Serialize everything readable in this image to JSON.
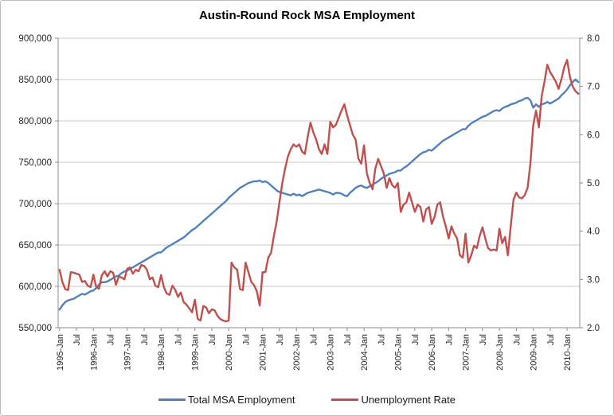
{
  "title": "Austin-Round Rock MSA Employment",
  "legend": {
    "entries": [
      {
        "label": "Total MSA Employment",
        "color": "#4F81BD"
      },
      {
        "label": "Unemployment Rate",
        "color": "#C0504D"
      }
    ]
  },
  "chart_data": {
    "type": "line",
    "title": "Austin-Round Rock MSA Employment",
    "xlabel": "",
    "ylabel_left": "",
    "ylabel_right": "",
    "grid": "horizontal-only",
    "legend_position": "bottom",
    "x_start": "1995-Jan",
    "x_end": "2010-May",
    "x_frequency": "monthly",
    "x_tick_labels": [
      "1995-Jan",
      "Jul",
      "1996-Jan",
      "Jul",
      "1997-Jan",
      "Jul",
      "1998-Jan",
      "Jul",
      "1999-Jan",
      "Jul",
      "2000-Jan",
      "Jul",
      "2001-Jan",
      "Jul",
      "2002-Jan",
      "Jul",
      "2003-Jan",
      "Jul",
      "2004-Jan",
      "Jul",
      "2005-Jan",
      "Jul",
      "2006-Jan",
      "Jul",
      "2007-Jan",
      "Jul",
      "2008-Jan",
      "Jul",
      "2009-Jan",
      "Jul",
      "2010-Jan"
    ],
    "x_tick_every_n_months": 6,
    "left_axis": {
      "min": 550000,
      "max": 900000,
      "step": 50000,
      "tick_labels": [
        "550,000",
        "600,000",
        "650,000",
        "700,000",
        "750,000",
        "800,000",
        "850,000",
        "900,000"
      ]
    },
    "right_axis": {
      "min": 2.0,
      "max": 8.0,
      "step": 1.0,
      "tick_labels": [
        "2.0",
        "3.0",
        "4.0",
        "5.0",
        "6.0",
        "7.0",
        "8.0"
      ]
    },
    "series": [
      {
        "name": "Total MSA Employment",
        "axis": "left",
        "color": "#4F81BD",
        "values": [
          572000,
          577000,
          581000,
          583000,
          584000,
          585000,
          587000,
          589000,
          591000,
          590000,
          592000,
          594000,
          595000,
          598000,
          602000,
          605000,
          605000,
          606000,
          608000,
          610000,
          612000,
          613000,
          616000,
          618000,
          619000,
          621000,
          623000,
          625000,
          627000,
          629000,
          631000,
          633000,
          635000,
          637000,
          639000,
          641000,
          641000,
          644000,
          647000,
          649000,
          651000,
          653000,
          655000,
          657000,
          659000,
          662000,
          665000,
          668000,
          670000,
          673000,
          676000,
          679000,
          682000,
          685000,
          688000,
          691000,
          694000,
          697000,
          700000,
          703000,
          707000,
          710000,
          713000,
          716000,
          719000,
          721000,
          723000,
          725000,
          726000,
          727000,
          727000,
          728000,
          726000,
          727000,
          725000,
          722000,
          719000,
          716000,
          714000,
          713000,
          712000,
          711000,
          710000,
          712000,
          710000,
          711000,
          709000,
          711000,
          713000,
          714000,
          715000,
          716000,
          717000,
          716000,
          715000,
          714000,
          713000,
          711000,
          713000,
          713000,
          712000,
          710000,
          709000,
          713000,
          716000,
          719000,
          721000,
          722000,
          720000,
          719000,
          721000,
          723000,
          725000,
          727000,
          730000,
          732000,
          734000,
          736000,
          737000,
          738000,
          740000,
          740000,
          743000,
          745000,
          748000,
          751000,
          754000,
          757000,
          760000,
          762000,
          763000,
          765000,
          764000,
          767000,
          770000,
          773000,
          776000,
          778000,
          780000,
          782000,
          784000,
          786000,
          788000,
          790000,
          790000,
          794000,
          797000,
          799000,
          801000,
          803000,
          805000,
          806000,
          808000,
          810000,
          812000,
          813000,
          812000,
          815000,
          817000,
          818000,
          820000,
          821000,
          822000,
          824000,
          825000,
          827000,
          828000,
          825000,
          816000,
          820000,
          817000,
          820000,
          821000,
          823000,
          821000,
          823000,
          825000,
          827000,
          831000,
          834000,
          838000,
          843000,
          847000,
          850000,
          847000
        ]
      },
      {
        "name": "Unemployment Rate",
        "axis": "right",
        "color": "#C0504D",
        "values": [
          3.2,
          2.95,
          2.8,
          2.78,
          3.15,
          3.14,
          3.12,
          3.1,
          2.95,
          2.97,
          2.87,
          2.84,
          3.1,
          2.84,
          2.81,
          3.09,
          3.17,
          3.06,
          3.17,
          3.14,
          2.89,
          3.06,
          3.04,
          3.0,
          3.22,
          3.25,
          3.12,
          3.2,
          3.17,
          3.3,
          3.28,
          3.2,
          3.0,
          3.04,
          2.87,
          2.84,
          3.09,
          2.84,
          2.71,
          2.68,
          2.87,
          2.79,
          2.64,
          2.73,
          2.53,
          2.48,
          2.4,
          2.32,
          2.58,
          2.18,
          2.15,
          2.45,
          2.42,
          2.3,
          2.38,
          2.36,
          2.25,
          2.18,
          2.15,
          2.13,
          2.15,
          3.35,
          3.25,
          3.2,
          2.8,
          2.78,
          3.35,
          3.15,
          2.95,
          2.88,
          2.75,
          2.46,
          3.15,
          3.15,
          3.45,
          3.55,
          3.9,
          4.2,
          4.6,
          5.0,
          5.3,
          5.55,
          5.7,
          5.8,
          5.75,
          5.8,
          5.65,
          5.6,
          5.95,
          6.25,
          6.05,
          5.9,
          5.7,
          5.6,
          5.8,
          5.6,
          6.27,
          6.15,
          6.2,
          6.35,
          6.5,
          6.63,
          6.4,
          6.2,
          6.0,
          5.9,
          5.5,
          5.4,
          5.78,
          5.2,
          5.0,
          4.87,
          5.3,
          5.5,
          5.35,
          5.2,
          4.9,
          5.1,
          4.95,
          4.9,
          5.0,
          4.4,
          4.55,
          4.6,
          4.8,
          4.6,
          4.4,
          4.55,
          4.5,
          4.2,
          4.45,
          4.5,
          4.15,
          4.3,
          4.55,
          4.6,
          4.3,
          4.1,
          3.85,
          4.1,
          3.95,
          3.85,
          3.5,
          3.45,
          3.95,
          3.35,
          3.5,
          3.7,
          3.65,
          3.9,
          4.08,
          3.85,
          3.65,
          3.6,
          3.62,
          3.6,
          4.05,
          3.75,
          3.88,
          3.5,
          4.1,
          4.65,
          4.8,
          4.7,
          4.68,
          4.75,
          4.9,
          5.4,
          6.2,
          6.5,
          6.15,
          6.8,
          7.1,
          7.45,
          7.3,
          7.2,
          7.1,
          6.95,
          7.15,
          7.4,
          7.55,
          7.2,
          7.0,
          6.9,
          6.85
        ]
      }
    ],
    "colors": {
      "employment_line": "#4F81BD",
      "unemployment_line": "#C0504D",
      "gridline": "#c9c9c9",
      "axis_line": "#8c8c8c",
      "tick_text": "#262626"
    }
  }
}
